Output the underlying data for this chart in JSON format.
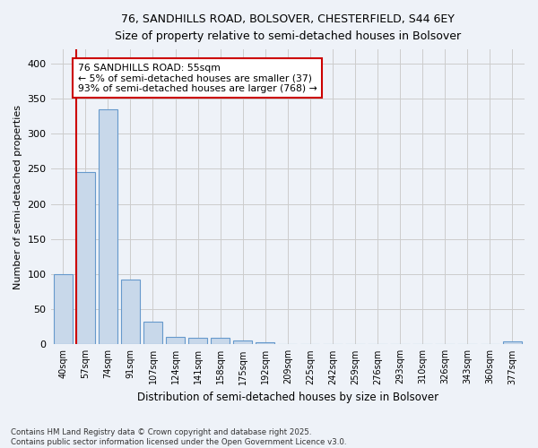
{
  "title_line1": "76, SANDHILLS ROAD, BOLSOVER, CHESTERFIELD, S44 6EY",
  "title_line2": "Size of property relative to semi-detached houses in Bolsover",
  "xlabel": "Distribution of semi-detached houses by size in Bolsover",
  "ylabel": "Number of semi-detached properties",
  "categories": [
    "40sqm",
    "57sqm",
    "74sqm",
    "91sqm",
    "107sqm",
    "124sqm",
    "141sqm",
    "158sqm",
    "175sqm",
    "192sqm",
    "209sqm",
    "225sqm",
    "242sqm",
    "259sqm",
    "276sqm",
    "293sqm",
    "310sqm",
    "326sqm",
    "343sqm",
    "360sqm",
    "377sqm"
  ],
  "values": [
    100,
    245,
    335,
    92,
    32,
    10,
    9,
    9,
    5,
    3,
    0,
    0,
    0,
    0,
    0,
    0,
    0,
    0,
    0,
    0,
    4
  ],
  "bar_color": "#c8d8ea",
  "bar_edge_color": "#6699cc",
  "bar_edge_width": 0.8,
  "grid_color": "#cccccc",
  "background_color": "#eef2f8",
  "annotation_title": "76 SANDHILLS ROAD: 55sqm",
  "annotation_line1": "← 5% of semi-detached houses are smaller (37)",
  "annotation_line2": "93% of semi-detached houses are larger (768) →",
  "annotation_box_color": "white",
  "annotation_border_color": "#cc0000",
  "footer_line1": "Contains HM Land Registry data © Crown copyright and database right 2025.",
  "footer_line2": "Contains public sector information licensed under the Open Government Licence v3.0.",
  "ylim": [
    0,
    420
  ],
  "yticks": [
    0,
    50,
    100,
    150,
    200,
    250,
    300,
    350,
    400
  ]
}
